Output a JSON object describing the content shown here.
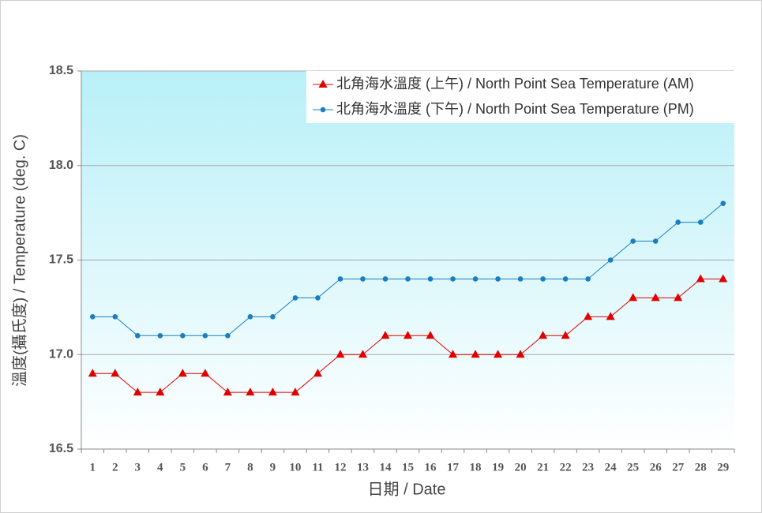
{
  "chart_data": {
    "type": "line",
    "x_label": "日期 / Date",
    "y_label": "溫度(攝氏度) / Temperature (deg. C)",
    "categories": [
      "1",
      "2",
      "3",
      "4",
      "5",
      "6",
      "7",
      "8",
      "9",
      "10",
      "11",
      "12",
      "13",
      "14",
      "15",
      "16",
      "17",
      "18",
      "19",
      "20",
      "21",
      "22",
      "23",
      "24",
      "25",
      "26",
      "27",
      "28",
      "29"
    ],
    "series": [
      {
        "name": "北角海水溫度 (上午) / North Point Sea Temperature (AM)",
        "color": "#e00000",
        "marker": "triangle",
        "values": [
          16.9,
          16.9,
          16.8,
          16.8,
          16.9,
          16.9,
          16.8,
          16.8,
          16.8,
          16.8,
          16.9,
          17.0,
          17.0,
          17.1,
          17.1,
          17.1,
          17.0,
          17.0,
          17.0,
          17.0,
          17.1,
          17.1,
          17.2,
          17.2,
          17.3,
          17.3,
          17.3,
          17.4,
          17.4
        ]
      },
      {
        "name": "北角海水溫度 (下午) / North Point Sea Temperature (PM)",
        "color": "#1a7fc1",
        "marker": "circle",
        "values": [
          17.2,
          17.2,
          17.1,
          17.1,
          17.1,
          17.1,
          17.1,
          17.2,
          17.2,
          17.3,
          17.3,
          17.4,
          17.4,
          17.4,
          17.4,
          17.4,
          17.4,
          17.4,
          17.4,
          17.4,
          17.4,
          17.4,
          17.4,
          17.5,
          17.6,
          17.6,
          17.7,
          17.7,
          17.8
        ]
      }
    ],
    "ylim": [
      16.5,
      18.5
    ],
    "yticks": [
      16.5,
      {
        "value": 17,
        "label": "17.0"
      },
      17.5,
      {
        "value": 18,
        "label": "18.0"
      },
      18.5
    ],
    "grid": true,
    "legend": "top-right"
  }
}
